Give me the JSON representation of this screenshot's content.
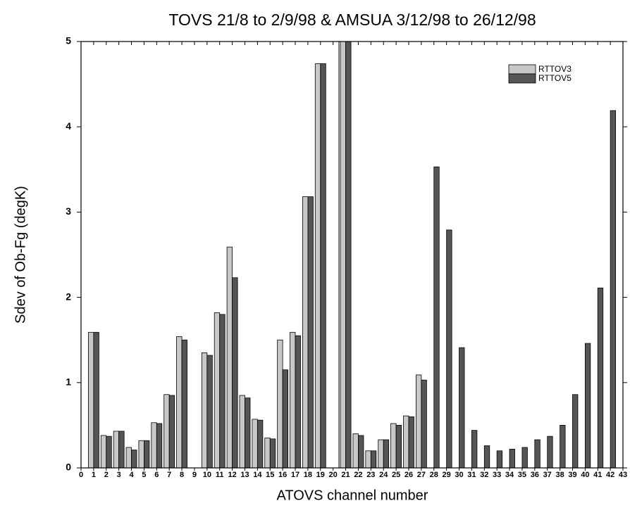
{
  "chart_data": {
    "type": "bar",
    "title": "TOVS 21/8 to 2/9/98 & AMSUA 3/12/98 to 26/12/98",
    "x_label": "ATOVS channel number",
    "y_label": "Sdev of Ob-Fg (degK)",
    "x": [
      1,
      2,
      3,
      4,
      5,
      6,
      7,
      8,
      9,
      10,
      11,
      12,
      13,
      14,
      15,
      16,
      17,
      18,
      19,
      20,
      21,
      22,
      23,
      24,
      25,
      26,
      27,
      28,
      29,
      30,
      31,
      32,
      33,
      34,
      35,
      36,
      37,
      38,
      39,
      40,
      41,
      42
    ],
    "series": [
      {
        "name": "RTTOV3",
        "color": "#c8c8c8",
        "values": [
          1.59,
          0.38,
          0.43,
          0.24,
          0.32,
          0.53,
          0.86,
          1.54,
          null,
          1.35,
          1.82,
          2.59,
          0.85,
          0.57,
          0.35,
          1.5,
          1.59,
          3.18,
          4.74,
          null,
          5,
          0.4,
          0.2,
          0.33,
          0.52,
          0.61,
          1.09,
          null,
          null,
          null,
          null,
          null,
          null,
          null,
          null,
          null,
          null,
          null,
          null,
          null,
          null,
          null
        ]
      },
      {
        "name": "RTTOV5",
        "color": "#555555",
        "values": [
          1.59,
          0.37,
          0.43,
          0.21,
          0.32,
          0.52,
          0.85,
          1.5,
          null,
          1.32,
          1.8,
          2.23,
          0.82,
          0.56,
          0.34,
          1.15,
          1.55,
          3.18,
          4.74,
          null,
          5,
          0.38,
          0.2,
          0.33,
          0.5,
          0.6,
          1.03,
          3.53,
          2.79,
          1.41,
          0.44,
          0.26,
          0.2,
          0.22,
          0.24,
          0.33,
          0.37,
          0.5,
          0.86,
          1.46,
          2.11,
          4.19
        ]
      }
    ],
    "xlim": [
      0,
      43
    ],
    "xticks": [
      0,
      1,
      2,
      3,
      4,
      5,
      6,
      7,
      8,
      9,
      10,
      11,
      12,
      13,
      14,
      15,
      16,
      17,
      18,
      19,
      20,
      21,
      22,
      23,
      24,
      25,
      26,
      27,
      28,
      29,
      30,
      31,
      32,
      33,
      34,
      35,
      36,
      37,
      38,
      39,
      40,
      41,
      42,
      43
    ],
    "ylim": [
      0,
      5
    ],
    "yticks": [
      0,
      1,
      2,
      3,
      4,
      5
    ],
    "legend": "upper-right"
  }
}
